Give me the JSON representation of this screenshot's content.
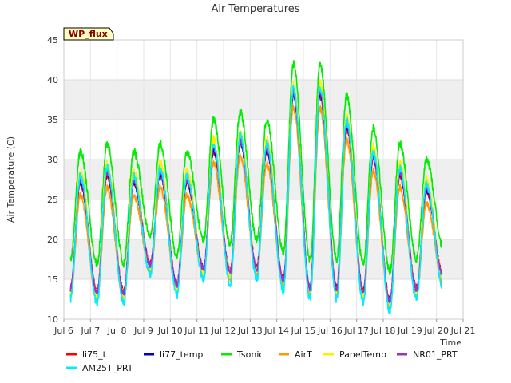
{
  "chart_data": {
    "type": "line",
    "title": "Air Temperatures",
    "xlabel": "Time",
    "ylabel": "Air Temperature (C)",
    "badge": "WP_flux",
    "xlim": [
      6,
      21
    ],
    "ylim": [
      10,
      45
    ],
    "x_ticks": [
      6,
      7,
      8,
      9,
      10,
      11,
      12,
      13,
      14,
      15,
      16,
      17,
      18,
      19,
      20,
      21
    ],
    "x_tick_labels": [
      "Jul 6",
      "Jul 7",
      "Jul 8",
      "Jul 9",
      "Jul 10",
      "Jul 11",
      "Jul 12",
      "Jul 13",
      "Jul 14",
      "Jul 15",
      "Jul 16",
      "Jul 17",
      "Jul 18",
      "Jul 19",
      "Jul 20",
      "Jul 21"
    ],
    "y_ticks": [
      10,
      15,
      20,
      25,
      30,
      35,
      40,
      45
    ],
    "grid": true,
    "band_fill": "#efefef",
    "legend_position": "bottom",
    "daily": {
      "days": [
        6.3,
        7,
        8,
        9,
        10,
        11,
        12,
        13,
        14,
        15,
        16,
        17,
        18,
        19,
        20
      ],
      "min": [
        14,
        13.5,
        13.5,
        17,
        14.5,
        16.5,
        16,
        16.5,
        15,
        14,
        14,
        13.5,
        12.5,
        14,
        15.5
      ],
      "max": [
        null,
        28,
        27,
        28,
        27,
        31,
        32,
        31,
        38,
        38,
        34,
        30,
        28,
        26,
        27
      ]
    },
    "series": [
      {
        "name": "li75_t",
        "color": "#ff0000",
        "offset_min": 0,
        "offset_max": 0,
        "jitter": 0.4
      },
      {
        "name": "li77_temp",
        "color": "#0000cc",
        "offset_min": -0.3,
        "offset_max": 0.3,
        "jitter": 0.4
      },
      {
        "name": "Tsonic",
        "color": "#00ee00",
        "offset_min": 3.5,
        "offset_max": 4,
        "jitter": 0.5
      },
      {
        "name": "AirT",
        "color": "#ff9900",
        "offset_min": -1,
        "offset_max": -1.5,
        "jitter": 0.4
      },
      {
        "name": "PanelTemp",
        "color": "#ffee00",
        "offset_min": -0.5,
        "offset_max": 1.5,
        "jitter": 0.6
      },
      {
        "name": "NR01_PRT",
        "color": "#9933cc",
        "offset_min": -0.2,
        "offset_max": 0.5,
        "jitter": 0.4
      },
      {
        "name": "AM25T_PRT",
        "color": "#00eeff",
        "offset_min": -1.5,
        "offset_max": 1,
        "jitter": 0.5
      }
    ]
  }
}
